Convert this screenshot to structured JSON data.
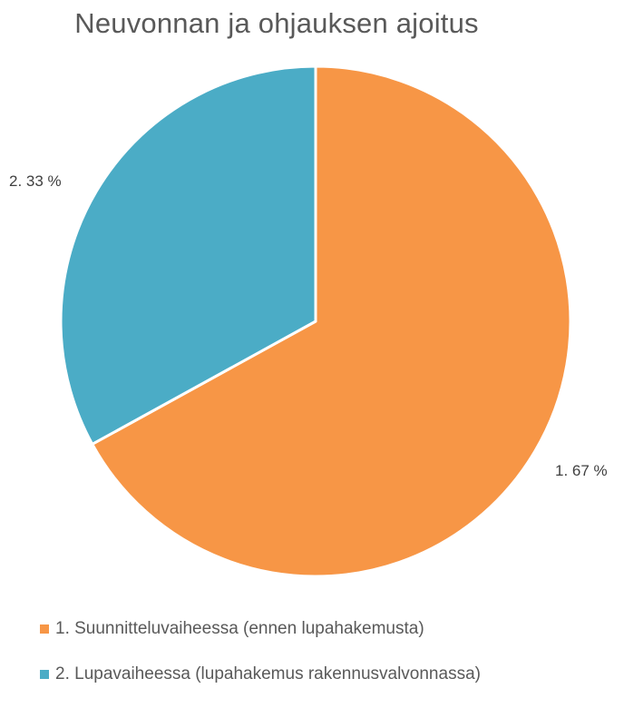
{
  "chart_data": {
    "type": "pie",
    "title": "Neuvonnan ja ohjauksen ajoitus",
    "slices": [
      {
        "label": "1. Suunnitteluvaiheessa (ennen lupahakemusta)",
        "value": 67,
        "data_label": "1. 67 %",
        "color": "#F79646"
      },
      {
        "label": "2. Lupavaiheessa (lupahakemus rakennusvalvonnassa)",
        "value": 33,
        "data_label": "2. 33 %",
        "color": "#4BACC6"
      }
    ],
    "legend_position": "bottom"
  }
}
